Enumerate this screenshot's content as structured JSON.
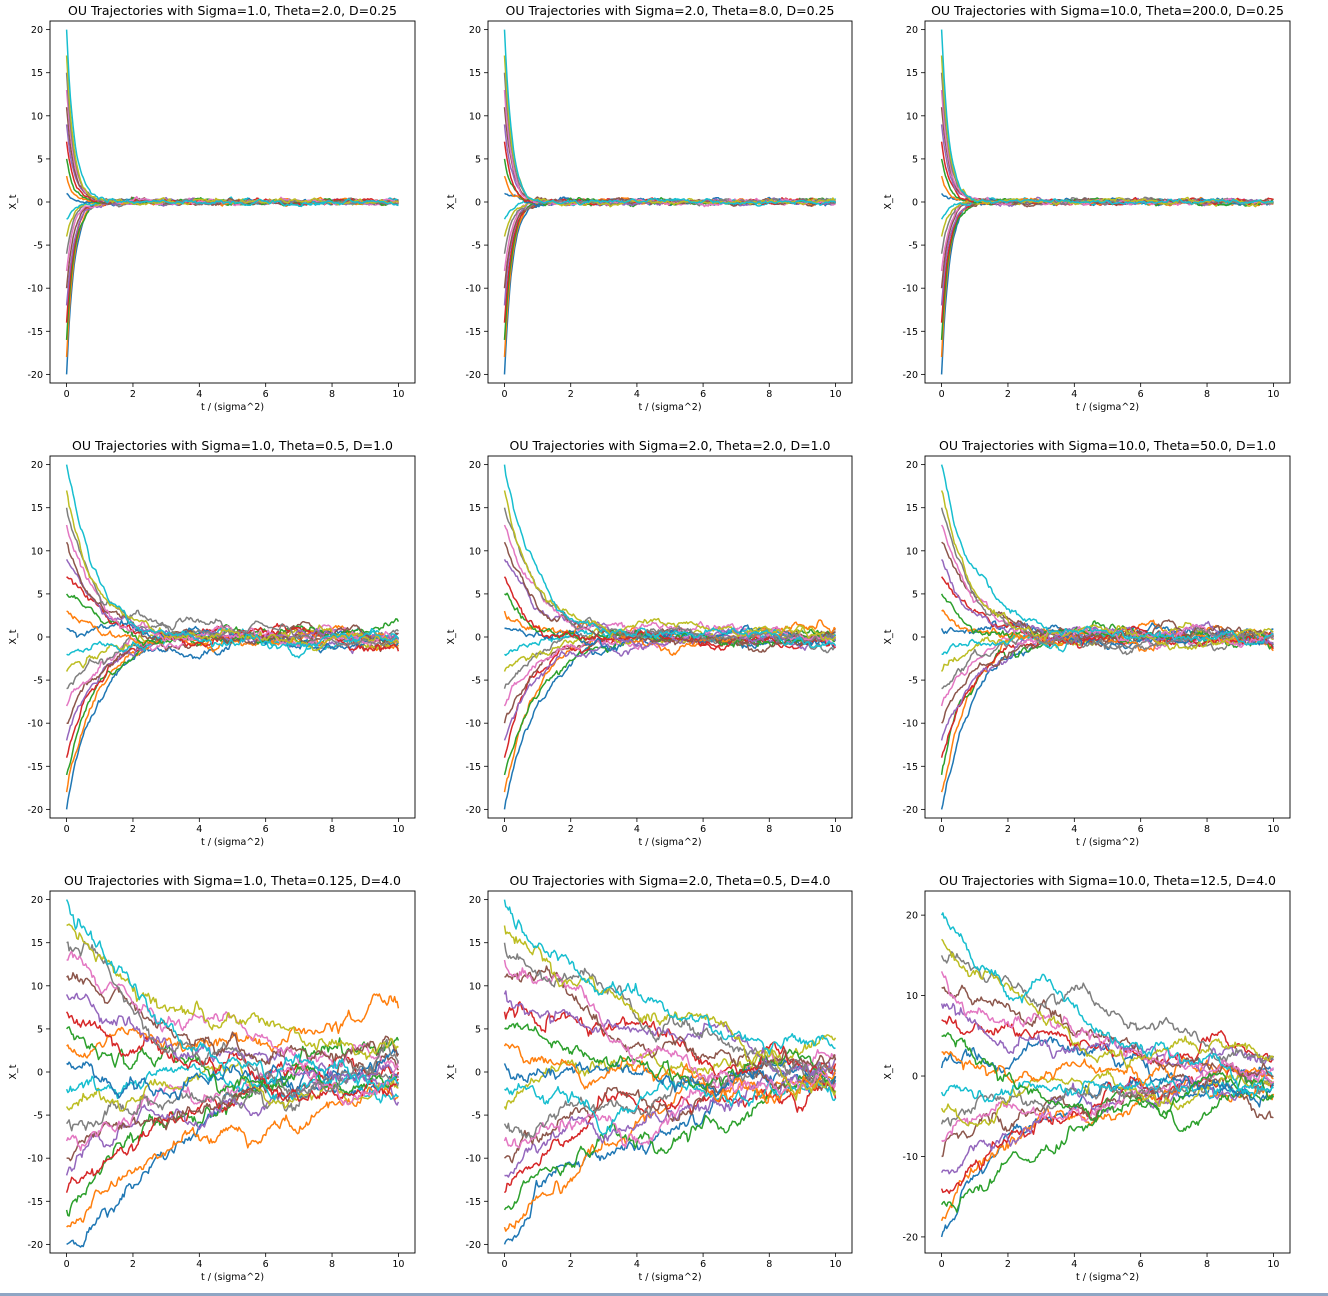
{
  "colors": [
    "#1f77b4",
    "#ff7f0e",
    "#2ca02c",
    "#d62728",
    "#9467bd",
    "#8c564b",
    "#e377c2",
    "#7f7f7f",
    "#bcbd22",
    "#17becf"
  ],
  "chart_data": [
    {
      "type": "line",
      "title": "OU Trajectories with Sigma=1.0, Theta=2.0, D=0.25",
      "xlabel": "t / (sigma^2)",
      "ylabel": "X_t",
      "xlim": [
        0,
        10
      ],
      "ylim": [
        -21,
        21
      ],
      "xticks": [
        0,
        2,
        4,
        6,
        8,
        10
      ],
      "yticks": [
        -20,
        -15,
        -10,
        -5,
        0,
        5,
        10,
        15,
        20
      ],
      "D": 0.25,
      "n_series": 20,
      "x0": [
        -20,
        -18,
        -16,
        -14,
        -12,
        -10,
        -8,
        -6,
        -4,
        -2,
        1,
        3,
        5,
        7,
        9,
        11,
        13,
        15,
        17,
        20
      ],
      "noise": 0.45,
      "seed": 11
    },
    {
      "type": "line",
      "title": "OU Trajectories with Sigma=2.0, Theta=8.0, D=0.25",
      "xlabel": "t / (sigma^2)",
      "ylabel": "X_t",
      "xlim": [
        0,
        10
      ],
      "ylim": [
        -21,
        21
      ],
      "xticks": [
        0,
        2,
        4,
        6,
        8,
        10
      ],
      "yticks": [
        -20,
        -15,
        -10,
        -5,
        0,
        5,
        10,
        15,
        20
      ],
      "D": 0.25,
      "n_series": 20,
      "x0": [
        -20,
        -18,
        -16,
        -14,
        -12,
        -10,
        -8,
        -6,
        -4,
        -2,
        1,
        3,
        5,
        7,
        9,
        11,
        13,
        15,
        17,
        20
      ],
      "noise": 0.45,
      "seed": 23
    },
    {
      "type": "line",
      "title": "OU Trajectories with Sigma=10.0, Theta=200.0, D=0.25",
      "xlabel": "t / (sigma^2)",
      "ylabel": "X_t",
      "xlim": [
        0,
        10
      ],
      "ylim": [
        -21,
        21
      ],
      "xticks": [
        0,
        2,
        4,
        6,
        8,
        10
      ],
      "yticks": [
        -20,
        -15,
        -10,
        -5,
        0,
        5,
        10,
        15,
        20
      ],
      "D": 0.25,
      "n_series": 20,
      "x0": [
        -20,
        -18,
        -16,
        -14,
        -12,
        -10,
        -8,
        -6,
        -4,
        -2,
        1,
        3,
        5,
        7,
        9,
        11,
        13,
        15,
        17,
        20
      ],
      "noise": 0.45,
      "seed": 37
    },
    {
      "type": "line",
      "title": "OU Trajectories with Sigma=1.0, Theta=0.5, D=1.0",
      "xlabel": "t / (sigma^2)",
      "ylabel": "X_t",
      "xlim": [
        0,
        10
      ],
      "ylim": [
        -21,
        21
      ],
      "xticks": [
        0,
        2,
        4,
        6,
        8,
        10
      ],
      "yticks": [
        -20,
        -15,
        -10,
        -5,
        0,
        5,
        10,
        15,
        20
      ],
      "D": 1.0,
      "n_series": 20,
      "x0": [
        -20,
        -18,
        -16,
        -14,
        -12,
        -10,
        -8,
        -6,
        -4,
        -2,
        1,
        3,
        5,
        7,
        9,
        11,
        13,
        15,
        17,
        20
      ],
      "noise": 0.9,
      "seed": 41
    },
    {
      "type": "line",
      "title": "OU Trajectories with Sigma=2.0, Theta=2.0, D=1.0",
      "xlabel": "t / (sigma^2)",
      "ylabel": "X_t",
      "xlim": [
        0,
        10
      ],
      "ylim": [
        -21,
        21
      ],
      "xticks": [
        0,
        2,
        4,
        6,
        8,
        10
      ],
      "yticks": [
        -20,
        -15,
        -10,
        -5,
        0,
        5,
        10,
        15,
        20
      ],
      "D": 1.0,
      "n_series": 20,
      "x0": [
        -20,
        -18,
        -16,
        -14,
        -12,
        -10,
        -8,
        -6,
        -4,
        -2,
        1,
        3,
        5,
        7,
        9,
        11,
        13,
        15,
        17,
        20
      ],
      "noise": 0.9,
      "seed": 53
    },
    {
      "type": "line",
      "title": "OU Trajectories with Sigma=10.0, Theta=50.0, D=1.0",
      "xlabel": "t / (sigma^2)",
      "ylabel": "X_t",
      "xlim": [
        0,
        10
      ],
      "ylim": [
        -21,
        21
      ],
      "xticks": [
        0,
        2,
        4,
        6,
        8,
        10
      ],
      "yticks": [
        -20,
        -15,
        -10,
        -5,
        0,
        5,
        10,
        15,
        20
      ],
      "D": 1.0,
      "n_series": 20,
      "x0": [
        -20,
        -18,
        -16,
        -14,
        -12,
        -10,
        -8,
        -6,
        -4,
        -2,
        1,
        3,
        5,
        7,
        9,
        11,
        13,
        15,
        17,
        20
      ],
      "noise": 0.9,
      "seed": 67
    },
    {
      "type": "line",
      "title": "OU Trajectories with Sigma=1.0, Theta=0.125, D=4.0",
      "xlabel": "t / (sigma^2)",
      "ylabel": "X_t",
      "xlim": [
        0,
        10
      ],
      "ylim": [
        -21,
        21
      ],
      "xticks": [
        0,
        2,
        4,
        6,
        8,
        10
      ],
      "yticks": [
        -20,
        -15,
        -10,
        -5,
        0,
        5,
        10,
        15,
        20
      ],
      "D": 4.0,
      "n_series": 20,
      "x0": [
        -20,
        -18,
        -16,
        -14,
        -12,
        -10,
        -8,
        -6,
        -4,
        -2,
        1,
        3,
        5,
        7,
        9,
        11,
        13,
        15,
        17,
        20
      ],
      "noise": 1.6,
      "seed": 71
    },
    {
      "type": "line",
      "title": "OU Trajectories with Sigma=2.0, Theta=0.5, D=4.0",
      "xlabel": "t / (sigma^2)",
      "ylabel": "X_t",
      "xlim": [
        0,
        10
      ],
      "ylim": [
        -21,
        21
      ],
      "xticks": [
        0,
        2,
        4,
        6,
        8,
        10
      ],
      "yticks": [
        -20,
        -15,
        -10,
        -5,
        0,
        5,
        10,
        15,
        20
      ],
      "D": 4.0,
      "n_series": 20,
      "x0": [
        -20,
        -18,
        -16,
        -14,
        -12,
        -10,
        -8,
        -6,
        -4,
        -2,
        1,
        3,
        5,
        7,
        9,
        11,
        13,
        15,
        17,
        20
      ],
      "noise": 1.6,
      "seed": 83
    },
    {
      "type": "line",
      "title": "OU Trajectories with Sigma=10.0, Theta=12.5, D=4.0",
      "xlabel": "t / (sigma^2)",
      "ylabel": "X_t",
      "xlim": [
        0,
        10
      ],
      "ylim": [
        -22,
        23
      ],
      "xticks": [
        0,
        2,
        4,
        6,
        8,
        10
      ],
      "yticks": [
        -20,
        -10,
        0,
        10,
        20
      ],
      "D": 4.0,
      "n_series": 20,
      "x0": [
        -20,
        -18,
        -16,
        -14,
        -12,
        -10,
        -8,
        -6,
        -4,
        -2,
        1,
        3,
        5,
        7,
        9,
        11,
        13,
        15,
        17,
        20
      ],
      "noise": 1.6,
      "seed": 97
    }
  ]
}
